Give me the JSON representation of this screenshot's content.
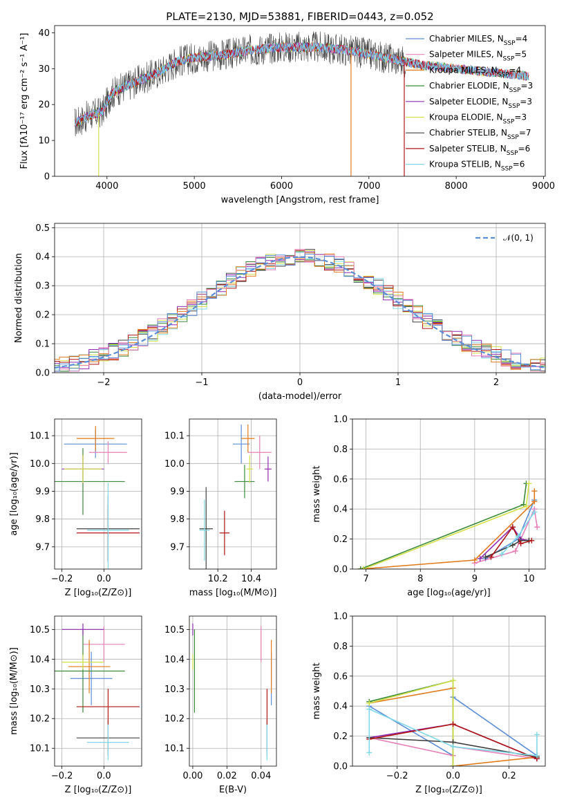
{
  "colors": {
    "Chabrier MILES": "#5b8dd8",
    "Salpeter MILES": "#e87fb8",
    "Kroupa MILES": "#e07a1a",
    "Chabrier ELODIE": "#3a8a3a",
    "Salpeter ELODIE": "#8e2ab0",
    "Kroupa ELODIE": "#d4e04a",
    "Chabrier STELIB": "#404040",
    "Salpeter STELIB": "#b01414",
    "Kroupa STELIB": "#7fd8e8",
    "gaussian": "#5b8dd8"
  },
  "chart_data": [
    {
      "id": "spectrum",
      "type": "line",
      "title": "PLATE=2130, MJD=53881, FIBERID=0443, z=0.052",
      "xlabel": "wavelength [Angstrom, rest frame]",
      "ylabel": "Flux [fλ10⁻¹⁷ erg cm⁻² s⁻¹ A⁻¹]",
      "xlim": [
        3400,
        9020
      ],
      "ylim": [
        0,
        42
      ],
      "xticks": [
        4000,
        5000,
        6000,
        7000,
        8000,
        9000
      ],
      "yticks": [
        0,
        10,
        20,
        30,
        40
      ],
      "legend_position": "upper right",
      "legend": [
        {
          "name": "Chabrier MILES",
          "nssp": "4"
        },
        {
          "name": "Salpeter MILES",
          "nssp": "5"
        },
        {
          "name": "Kroupa MILES",
          "nssp": "4"
        },
        {
          "name": "Chabrier ELODIE",
          "nssp": "3"
        },
        {
          "name": "Salpeter ELODIE",
          "nssp": "3"
        },
        {
          "name": "Kroupa ELODIE",
          "nssp": "3"
        },
        {
          "name": "Chabrier STELIB",
          "nssp": "7"
        },
        {
          "name": "Salpeter STELIB",
          "nssp": "6"
        },
        {
          "name": "Kroupa STELIB",
          "nssp": "6"
        }
      ],
      "continuum": {
        "x": [
          3650,
          3800,
          3950,
          4050,
          4200,
          4400,
          4600,
          4800,
          5000,
          5200,
          5400,
          5600,
          5800,
          6000,
          6200,
          6400,
          6600,
          6800,
          7000,
          7200,
          7400,
          7600,
          7800,
          8000,
          8200,
          8400,
          8600,
          8800
        ],
        "y": [
          15,
          17,
          18,
          23,
          25,
          27,
          29,
          32,
          33,
          33.5,
          34,
          35,
          35.5,
          36,
          36,
          36,
          35.5,
          35,
          34,
          33,
          32,
          31,
          30.5,
          30,
          29.5,
          29,
          28.5,
          28
        ]
      },
      "dropouts": [
        {
          "series": "Kroupa ELODIE",
          "x": 3905
        },
        {
          "series": "Kroupa MILES",
          "x": 6795
        },
        {
          "series": "Salpeter STELIB",
          "x": 7405
        }
      ]
    },
    {
      "id": "residuals",
      "type": "line",
      "xlabel": "(data-model)/error",
      "ylabel": "Normed distribution",
      "xlim": [
        -2.5,
        2.5
      ],
      "ylim": [
        0,
        0.515
      ],
      "xticks": [
        -2,
        -1,
        0,
        1,
        2
      ],
      "yticks": [
        0.0,
        0.1,
        0.2,
        0.3,
        0.4,
        0.5
      ],
      "grid": true,
      "legend_position": "upper right",
      "gaussian_label": "𝒩(0, 1)",
      "bin_width": 0.1
    },
    {
      "id": "age-vs-Z",
      "type": "scatter",
      "xlabel": "Z [log₁₀(Z/Z⊙)]",
      "ylabel": "age  [log₁₀(age/yr)]",
      "xlim": [
        -0.235,
        0.18
      ],
      "ylim": [
        9.62,
        10.16
      ],
      "xticks": [
        -0.2,
        0.0
      ],
      "yticks": [
        9.7,
        9.8,
        9.9,
        10.0,
        10.1
      ],
      "grid": true,
      "points": [
        {
          "series": "Chabrier MILES",
          "x": -0.04,
          "y": 10.07,
          "xerr": 0.15,
          "yerr": 0.05
        },
        {
          "series": "Salpeter MILES",
          "x": 0.02,
          "y": 10.04,
          "xerr": 0.09,
          "yerr": 0.04
        },
        {
          "series": "Kroupa MILES",
          "x": -0.04,
          "y": 10.09,
          "xerr": 0.09,
          "yerr": 0.045
        },
        {
          "series": "Chabrier ELODIE",
          "x": -0.1,
          "y": 9.935,
          "xerr": 0.2,
          "yerr": 0.12
        },
        {
          "series": "Salpeter ELODIE",
          "x": -0.1,
          "y": 9.98,
          "xerr": 0.1,
          "yerr": 0.05
        },
        {
          "series": "Kroupa ELODIE",
          "x": -0.1,
          "y": 9.98,
          "xerr": 0.09,
          "yerr": 0.05
        },
        {
          "series": "Chabrier STELIB",
          "x": 0.02,
          "y": 9.765,
          "xerr": 0.15,
          "yerr": 0.12
        },
        {
          "series": "Salpeter STELIB",
          "x": 0.02,
          "y": 9.75,
          "xerr": 0.15,
          "yerr": 0.1
        },
        {
          "series": "Kroupa STELIB",
          "x": 0.02,
          "y": 9.76,
          "xerr": 0.1,
          "yerr": 0.17
        }
      ]
    },
    {
      "id": "age-vs-mass",
      "type": "scatter",
      "xlabel": "mass [log₁₀(M/M⊙)]",
      "xlim": [
        10.03,
        10.55
      ],
      "ylim": [
        9.62,
        10.16
      ],
      "xticks": [
        10.2,
        10.4
      ],
      "yticks": [
        9.7,
        9.8,
        9.9,
        10.0,
        10.1
      ],
      "grid": true,
      "points": [
        {
          "series": "Chabrier MILES",
          "x": 10.34,
          "y": 10.07,
          "xerr": 0.05,
          "yerr": 0.07
        },
        {
          "series": "Salpeter MILES",
          "x": 10.45,
          "y": 10.04,
          "xerr": 0.07,
          "yerr": 0.06
        },
        {
          "series": "Kroupa MILES",
          "x": 10.38,
          "y": 10.09,
          "xerr": 0.04,
          "yerr": 0.05
        },
        {
          "series": "Chabrier ELODIE",
          "x": 10.36,
          "y": 9.935,
          "xerr": 0.06,
          "yerr": 0.06
        },
        {
          "series": "Salpeter ELODIE",
          "x": 10.5,
          "y": 9.98,
          "xerr": 0.02,
          "yerr": 0.045
        },
        {
          "series": "Kroupa ELODIE",
          "x": 10.39,
          "y": 9.98,
          "xerr": 0.02,
          "yerr": 0.05
        },
        {
          "series": "Chabrier STELIB",
          "x": 10.13,
          "y": 9.765,
          "xerr": 0.04,
          "yerr": 0.15
        },
        {
          "series": "Salpeter STELIB",
          "x": 10.24,
          "y": 9.75,
          "xerr": 0.03,
          "yerr": 0.08
        },
        {
          "series": "Kroupa STELIB",
          "x": 10.12,
          "y": 9.76,
          "xerr": 0.03,
          "yerr": 0.11
        }
      ]
    },
    {
      "id": "mass-weight-vs-age",
      "type": "line",
      "xlabel": "age  [log₁₀(age/yr)]",
      "ylabel": "mass weight",
      "xlim": [
        6.75,
        10.3
      ],
      "ylim": [
        0,
        1.0
      ],
      "xticks": [
        7,
        8,
        9,
        10
      ],
      "yticks": [
        0.0,
        0.2,
        0.4,
        0.6,
        0.8,
        1.0
      ],
      "grid": true,
      "series": [
        {
          "name": "Chabrier MILES",
          "x": [
            9.2,
            9.8,
            10.1
          ],
          "y": [
            0.07,
            0.2,
            0.46
          ]
        },
        {
          "name": "Salpeter MILES",
          "x": [
            9.0,
            9.75,
            10.1,
            10.15
          ],
          "y": [
            0.04,
            0.12,
            0.4,
            0.28
          ]
        },
        {
          "name": "Kroupa MILES",
          "x": [
            6.9,
            9.0,
            10.1,
            10.1
          ],
          "y": [
            0.0,
            0.06,
            0.45,
            0.52
          ]
        },
        {
          "name": "Chabrier ELODIE",
          "x": [
            6.9,
            9.9,
            9.95
          ],
          "y": [
            0.0,
            0.43,
            0.57
          ]
        },
        {
          "name": "Salpeter ELODIE",
          "x": [
            9.1,
            9.7,
            9.85,
            10.0
          ],
          "y": [
            0.07,
            0.28,
            0.2,
            0.19
          ]
        },
        {
          "name": "Kroupa ELODIE",
          "x": [
            6.95,
            9.95,
            10.0
          ],
          "y": [
            0.0,
            0.42,
            0.57
          ]
        },
        {
          "name": "Chabrier STELIB",
          "x": [
            9.2,
            9.7,
            9.85,
            10.0
          ],
          "y": [
            0.08,
            0.16,
            0.19,
            0.19
          ]
        },
        {
          "name": "Salpeter STELIB",
          "x": [
            9.3,
            9.7,
            9.85,
            10.05
          ],
          "y": [
            0.08,
            0.28,
            0.17,
            0.19
          ]
        },
        {
          "name": "Kroupa STELIB",
          "x": [
            9.5,
            9.8,
            10.1
          ],
          "y": [
            0.1,
            0.22,
            0.38
          ]
        }
      ]
    },
    {
      "id": "mass-vs-Z",
      "type": "scatter",
      "xlabel": "Z [log₁₀(Z/Z⊙)]",
      "ylabel": "mass [log₁₀(M/M⊙)]",
      "xlim": [
        -0.235,
        0.18
      ],
      "ylim": [
        10.04,
        10.545
      ],
      "xticks": [
        -0.2,
        0.0
      ],
      "yticks": [
        10.1,
        10.2,
        10.3,
        10.4,
        10.5
      ],
      "grid": true,
      "points": [
        {
          "series": "Chabrier MILES",
          "x": -0.06,
          "y": 10.335,
          "xerr": 0.1,
          "yerr": 0.09
        },
        {
          "series": "Salpeter MILES",
          "x": 0.0,
          "y": 10.45,
          "xerr": 0.1,
          "yerr": 0.06
        },
        {
          "series": "Kroupa MILES",
          "x": -0.07,
          "y": 10.375,
          "xerr": 0.1,
          "yerr": 0.09
        },
        {
          "series": "Chabrier ELODIE",
          "x": -0.1,
          "y": 10.36,
          "xerr": 0.2,
          "yerr": 0.14
        },
        {
          "series": "Salpeter ELODIE",
          "x": -0.1,
          "y": 10.5,
          "xerr": 0.1,
          "yerr": 0.02
        },
        {
          "series": "Kroupa ELODIE",
          "x": -0.1,
          "y": 10.39,
          "xerr": 0.1,
          "yerr": 0.025
        },
        {
          "series": "Chabrier STELIB",
          "x": 0.02,
          "y": 10.135,
          "xerr": 0.15,
          "yerr": 0.06
        },
        {
          "series": "Salpeter STELIB",
          "x": 0.02,
          "y": 10.24,
          "xerr": 0.15,
          "yerr": 0.06
        },
        {
          "series": "Kroupa STELIB",
          "x": 0.02,
          "y": 10.12,
          "xerr": 0.1,
          "yerr": 0.06
        }
      ]
    },
    {
      "id": "mass-vs-ebv",
      "type": "scatter",
      "xlabel": "E(B-V)",
      "xlim": [
        -0.002,
        0.049
      ],
      "ylim": [
        10.04,
        10.545
      ],
      "xticks": [
        0.0,
        0.02,
        0.04
      ],
      "yticks": [
        10.1,
        10.2,
        10.3,
        10.4,
        10.5
      ],
      "grid": true,
      "points": [
        {
          "series": "Chabrier MILES",
          "x": 0.046,
          "y": 10.335,
          "yerr": 0.09
        },
        {
          "series": "Salpeter MILES",
          "x": 0.04,
          "y": 10.45,
          "yerr": 0.06
        },
        {
          "series": "Kroupa MILES",
          "x": 0.046,
          "y": 10.375,
          "yerr": 0.09
        },
        {
          "series": "Chabrier ELODIE",
          "x": 0.001,
          "y": 10.36,
          "yerr": 0.14
        },
        {
          "series": "Salpeter ELODIE",
          "x": 0.0,
          "y": 10.5,
          "yerr": 0.02
        },
        {
          "series": "Kroupa ELODIE",
          "x": 0.0,
          "y": 10.39,
          "yerr": 0.025
        },
        {
          "series": "Chabrier STELIB",
          "x": 0.0435,
          "y": 10.135,
          "yerr": 0.06
        },
        {
          "series": "Salpeter STELIB",
          "x": 0.0435,
          "y": 10.24,
          "yerr": 0.06
        },
        {
          "series": "Kroupa STELIB",
          "x": 0.0435,
          "y": 10.12,
          "yerr": 0.06
        }
      ]
    },
    {
      "id": "mass-weight-vs-Z",
      "type": "line",
      "xlabel": "Z [log₁₀(Z/Z⊙)]",
      "ylabel": "mass weight",
      "xlim": [
        -0.36,
        0.33
      ],
      "ylim": [
        0,
        1.0
      ],
      "xticks": [
        -0.2,
        0.0,
        0.2
      ],
      "yticks": [
        0.0,
        0.2,
        0.4,
        0.6,
        0.8,
        1.0
      ],
      "grid": true,
      "series": [
        {
          "name": "Chabrier MILES",
          "x": [
            -0.3,
            0.0,
            0.0,
            0.3
          ],
          "y": [
            0.4,
            0.07,
            0.46,
            0.07
          ]
        },
        {
          "name": "Salpeter MILES",
          "x": [
            -0.3,
            0.0,
            0.0,
            0.3
          ],
          "y": [
            0.19,
            0.07,
            0.13,
            0.05
          ]
        },
        {
          "name": "Kroupa MILES",
          "x": [
            -0.3,
            0.0,
            0.0,
            0.3,
            0.3
          ],
          "y": [
            0.42,
            0.52,
            0.0,
            0.06,
            0.07
          ]
        },
        {
          "name": "Chabrier ELODIE",
          "x": [
            -0.3,
            0.0,
            0.0
          ],
          "y": [
            0.43,
            0.57,
            0.0
          ]
        },
        {
          "name": "Salpeter ELODIE",
          "x": [
            -0.3,
            0.0,
            0.3
          ],
          "y": [
            0.19,
            0.28,
            0.05
          ]
        },
        {
          "name": "Kroupa ELODIE",
          "x": [
            -0.3,
            0.0,
            0.0
          ],
          "y": [
            0.42,
            0.57,
            0.0
          ]
        },
        {
          "name": "Chabrier STELIB",
          "x": [
            -0.3,
            0.0,
            0.3
          ],
          "y": [
            0.19,
            0.16,
            0.06
          ]
        },
        {
          "name": "Salpeter STELIB",
          "x": [
            -0.3,
            0.0,
            0.3
          ],
          "y": [
            0.18,
            0.28,
            0.05
          ]
        },
        {
          "name": "Kroupa STELIB",
          "x": [
            -0.3,
            -0.3,
            0.0,
            0.3,
            0.3
          ],
          "y": [
            0.09,
            0.38,
            0.13,
            0.07,
            0.21
          ]
        }
      ]
    }
  ]
}
